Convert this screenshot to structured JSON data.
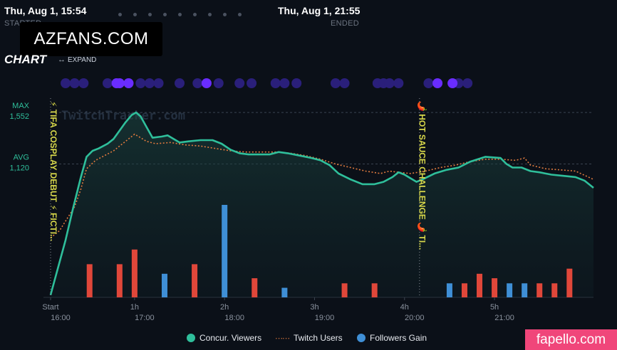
{
  "header": {
    "start_date": "Thu, Aug 1, 15:54",
    "start_label": "STARTED",
    "end_date": "Thu, Aug 1, 21:55",
    "end_label": "ENDED"
  },
  "overlays": {
    "watermark_top": "AZFANS.COM",
    "watermark_bottom": "fapello.com",
    "chart_watermark": "TwitchTracker.com"
  },
  "chart_heading": "CHART",
  "expand_label": "EXPAND",
  "icons": {
    "expand": "horizontal-arrows-icon",
    "lightning": "lightning-icon",
    "chili": "chili-pepper-icon"
  },
  "colors": {
    "viewers": "#2fbf9b",
    "twitch_users": "#e07a3e",
    "followers_gain": "#3f8fd6",
    "followers_loss": "#e0473a",
    "events": "#5b2fd6",
    "annotation": "#d8d84a",
    "background": "#0b1018"
  },
  "chart_data": {
    "type": "line",
    "title": "",
    "xlabel": "",
    "ylabel": "",
    "x_unit": "minutes since stream start",
    "xlim": [
      0,
      362
    ],
    "ylim": [
      0,
      1720
    ],
    "y_markers": [
      {
        "label": "MAX",
        "value_label": "1,552",
        "value": 1552
      },
      {
        "label": "AVG",
        "value_label": "1,120",
        "value": 1120
      }
    ],
    "x_ticks": [
      {
        "x": 0,
        "top": "Start",
        "bottom": "16:00"
      },
      {
        "x": 56,
        "top": "1h",
        "bottom": "17:00"
      },
      {
        "x": 116,
        "top": "2h",
        "bottom": "18:00"
      },
      {
        "x": 176,
        "top": "3h",
        "bottom": "19:00"
      },
      {
        "x": 236,
        "top": "4h",
        "bottom": "20:00"
      },
      {
        "x": 296,
        "top": "5h",
        "bottom": "21:00"
      }
    ],
    "annotations": [
      {
        "x": 0,
        "label": "⚡ TIFA COSPLAY DEBUT ⚡ FICTI..."
      },
      {
        "x": 246,
        "label": "🌶️ HOT SAUCE CHALLENGE 🌶️ TI..."
      }
    ],
    "series": [
      {
        "name": "Concur. Viewers",
        "type": "area",
        "points": [
          [
            0,
            20
          ],
          [
            5,
            250
          ],
          [
            10,
            480
          ],
          [
            15,
            750
          ],
          [
            20,
            1000
          ],
          [
            24,
            1180
          ],
          [
            28,
            1230
          ],
          [
            32,
            1250
          ],
          [
            38,
            1290
          ],
          [
            42,
            1330
          ],
          [
            46,
            1400
          ],
          [
            50,
            1470
          ],
          [
            54,
            1530
          ],
          [
            57,
            1552
          ],
          [
            60,
            1520
          ],
          [
            64,
            1430
          ],
          [
            68,
            1340
          ],
          [
            74,
            1350
          ],
          [
            78,
            1360
          ],
          [
            82,
            1330
          ],
          [
            86,
            1300
          ],
          [
            92,
            1310
          ],
          [
            100,
            1320
          ],
          [
            108,
            1320
          ],
          [
            114,
            1290
          ],
          [
            120,
            1240
          ],
          [
            126,
            1210
          ],
          [
            132,
            1200
          ],
          [
            140,
            1200
          ],
          [
            146,
            1200
          ],
          [
            152,
            1220
          ],
          [
            158,
            1210
          ],
          [
            166,
            1190
          ],
          [
            174,
            1170
          ],
          [
            180,
            1150
          ],
          [
            186,
            1110
          ],
          [
            192,
            1040
          ],
          [
            200,
            990
          ],
          [
            208,
            950
          ],
          [
            216,
            950
          ],
          [
            222,
            970
          ],
          [
            228,
            1010
          ],
          [
            232,
            1050
          ],
          [
            236,
            1030
          ],
          [
            240,
            1000
          ],
          [
            244,
            970
          ],
          [
            248,
            990
          ],
          [
            256,
            1040
          ],
          [
            264,
            1070
          ],
          [
            272,
            1090
          ],
          [
            280,
            1140
          ],
          [
            290,
            1180
          ],
          [
            300,
            1170
          ],
          [
            304,
            1120
          ],
          [
            308,
            1090
          ],
          [
            314,
            1090
          ],
          [
            320,
            1060
          ],
          [
            326,
            1050
          ],
          [
            334,
            1030
          ],
          [
            342,
            1020
          ],
          [
            350,
            1010
          ],
          [
            356,
            980
          ],
          [
            362,
            920
          ]
        ]
      },
      {
        "name": "Twitch Users",
        "type": "line",
        "points": [
          [
            0,
            500
          ],
          [
            6,
            560
          ],
          [
            10,
            640
          ],
          [
            16,
            760
          ],
          [
            20,
            900
          ],
          [
            24,
            1080
          ],
          [
            30,
            1150
          ],
          [
            36,
            1190
          ],
          [
            42,
            1230
          ],
          [
            48,
            1290
          ],
          [
            52,
            1330
          ],
          [
            56,
            1370
          ],
          [
            60,
            1340
          ],
          [
            64,
            1310
          ],
          [
            70,
            1290
          ],
          [
            80,
            1300
          ],
          [
            90,
            1280
          ],
          [
            100,
            1270
          ],
          [
            110,
            1250
          ],
          [
            120,
            1230
          ],
          [
            130,
            1220
          ],
          [
            140,
            1220
          ],
          [
            150,
            1220
          ],
          [
            160,
            1210
          ],
          [
            170,
            1190
          ],
          [
            180,
            1160
          ],
          [
            190,
            1120
          ],
          [
            200,
            1090
          ],
          [
            210,
            1060
          ],
          [
            220,
            1040
          ],
          [
            226,
            1060
          ],
          [
            232,
            1050
          ],
          [
            240,
            1040
          ],
          [
            250,
            1060
          ],
          [
            260,
            1090
          ],
          [
            270,
            1110
          ],
          [
            280,
            1140
          ],
          [
            290,
            1160
          ],
          [
            300,
            1160
          ],
          [
            310,
            1150
          ],
          [
            316,
            1170
          ],
          [
            320,
            1110
          ],
          [
            330,
            1080
          ],
          [
            340,
            1070
          ],
          [
            350,
            1060
          ],
          [
            362,
            990
          ]
        ]
      },
      {
        "name": "Followers Gain",
        "type": "bar",
        "unit": "new followers (blue = gain, red = loss)",
        "bars": [
          [
            26,
            52,
            "loss"
          ],
          [
            46,
            52,
            "loss"
          ],
          [
            56,
            75,
            "loss"
          ],
          [
            76,
            37,
            "gain"
          ],
          [
            96,
            52,
            "loss"
          ],
          [
            116,
            145,
            "gain"
          ],
          [
            136,
            30,
            "loss"
          ],
          [
            156,
            15,
            "gain"
          ],
          [
            196,
            22,
            "loss"
          ],
          [
            216,
            22,
            "loss"
          ],
          [
            266,
            22,
            "gain"
          ],
          [
            276,
            22,
            "loss"
          ],
          [
            286,
            37,
            "loss"
          ],
          [
            296,
            30,
            "loss"
          ],
          [
            306,
            22,
            "gain"
          ],
          [
            316,
            22,
            "gain"
          ],
          [
            326,
            22,
            "loss"
          ],
          [
            336,
            22,
            "loss"
          ],
          [
            346,
            45,
            "loss"
          ]
        ]
      }
    ],
    "event_dots": {
      "dim": [
        10,
        16,
        22,
        38,
        44,
        52,
        60,
        66,
        72,
        86,
        98,
        112,
        126,
        134,
        150,
        156,
        164,
        190,
        196,
        218,
        222,
        226,
        232,
        252,
        272,
        278
      ],
      "bright": [
        44,
        46,
        52,
        104,
        258,
        268
      ]
    },
    "legend": [
      "Concur. Viewers",
      "Twitch Users",
      "Followers Gain"
    ],
    "legend_position": "bottom-center",
    "grid": "horizontal dashed at MAX and AVG"
  }
}
